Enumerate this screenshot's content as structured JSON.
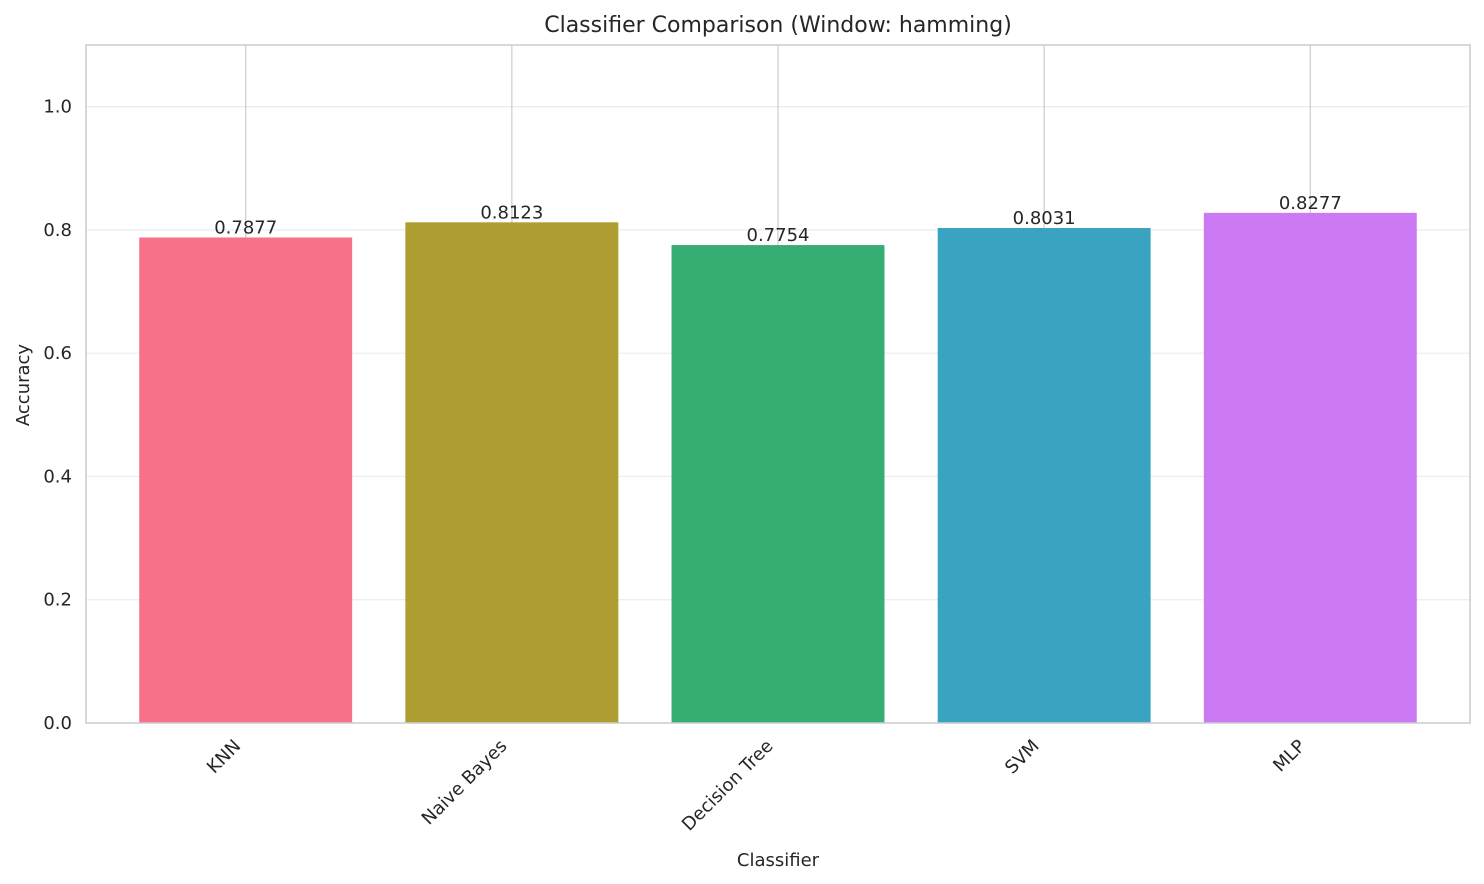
{
  "chart_data": {
    "type": "bar",
    "title": "Classifier Comparison (Window: hamming)",
    "xlabel": "Classifier",
    "ylabel": "Accuracy",
    "categories": [
      "KNN",
      "Naive Bayes",
      "Decision Tree",
      "SVM",
      "MLP"
    ],
    "values": [
      0.7877,
      0.8123,
      0.7754,
      0.8031,
      0.8277
    ],
    "data_labels": [
      "0.7877",
      "0.8123",
      "0.7754",
      "0.8031",
      "0.8277"
    ],
    "colors": [
      "#f77189",
      "#ae9d31",
      "#36ad73",
      "#3ba3c2",
      "#cc7af4"
    ],
    "ylim": [
      0,
      1.1
    ],
    "yticks": [
      0.0,
      0.2,
      0.4,
      0.6,
      0.8,
      1.0
    ],
    "ytick_labels": [
      "0.0",
      "0.2",
      "0.4",
      "0.6",
      "0.8",
      "1.0"
    ],
    "grid": true,
    "legend": false
  }
}
